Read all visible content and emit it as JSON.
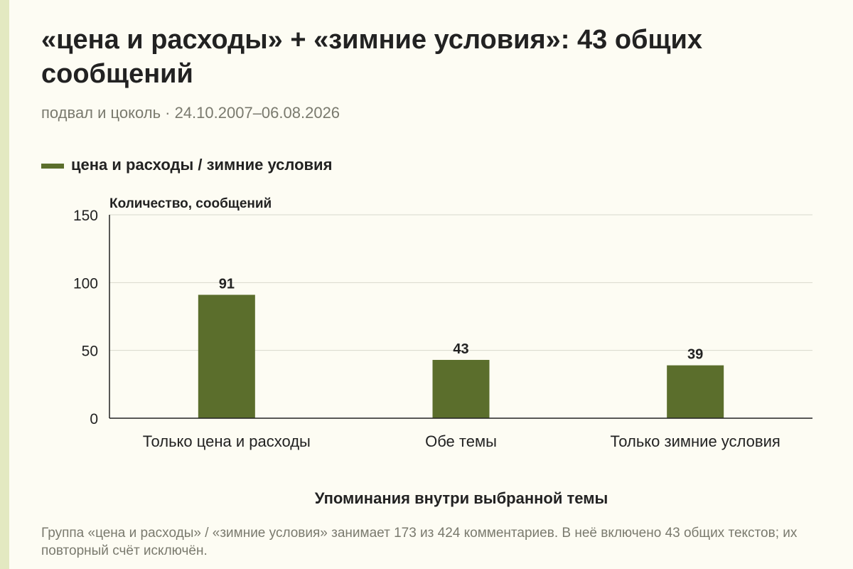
{
  "title": "«цена и расходы» + «зимние условия»: 43 общих сообщений",
  "subtitle": "подвал и цоколь · 24.10.2007–06.08.2026",
  "legend": {
    "label": "цена и расходы / зимние условия",
    "color": "#5b6e2c"
  },
  "chart_data": {
    "type": "bar",
    "categories": [
      "Только цена и расходы",
      "Обе темы",
      "Только зимние условия"
    ],
    "series": [
      {
        "name": "цена и расходы / зимние условия",
        "values": [
          91,
          43,
          39
        ]
      }
    ],
    "values": [
      91,
      43,
      39
    ],
    "ylabel": "Количество, сообщений",
    "xlabel": "Упоминания внутри выбранной темы",
    "ylim": [
      0,
      150
    ],
    "yticks": [
      0,
      50,
      100,
      150
    ],
    "grid": true,
    "legend_position": "top-left",
    "bar_color": "#5b6e2c"
  },
  "note": "Группа «цена и расходы» / «зимние условия» занимает 173 из 424 комментариев. В неё включено 43 общих текстов; их повторный счёт исключён."
}
